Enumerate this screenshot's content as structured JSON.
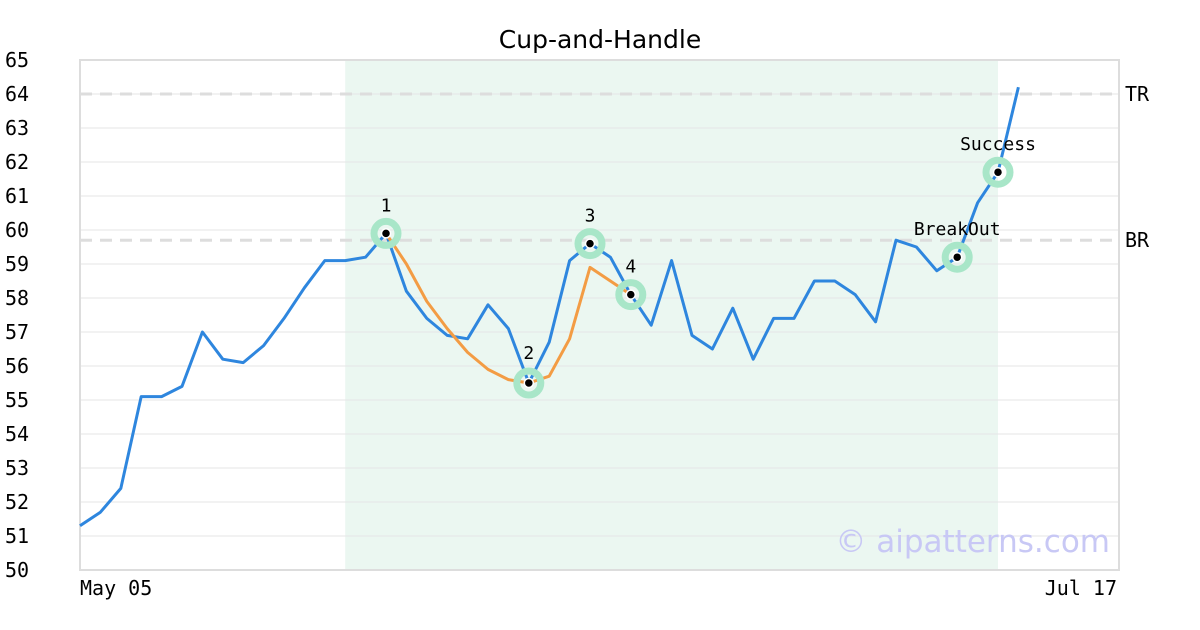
{
  "chart_data": {
    "type": "line",
    "title": "Cup-and-Handle",
    "xlabel": "",
    "ylabel": "",
    "ylim": [
      50,
      65
    ],
    "yticks": [
      50,
      51,
      52,
      53,
      54,
      55,
      56,
      57,
      58,
      59,
      60,
      61,
      62,
      63,
      64,
      65
    ],
    "x_tick_labels": [
      "May 05",
      "Jul 17"
    ],
    "grid": true,
    "colors": {
      "price": "#2e86de",
      "pattern": "#f39c44",
      "highlight": "#ebf7f1",
      "marker_halo": "#a8e6c8",
      "reference_line": "#dddddd",
      "watermark": "#c8c8f5"
    },
    "series": [
      {
        "values": [
          51.3,
          51.7,
          52.4,
          55.1,
          55.1,
          55.4,
          57.0,
          56.2,
          56.1,
          56.6,
          57.4,
          58.3,
          59.1,
          59.1,
          59.2,
          59.9,
          58.2,
          57.4,
          56.9,
          56.8,
          57.8,
          57.1,
          55.5,
          56.7,
          59.1,
          59.6,
          59.2,
          58.1,
          57.2,
          59.1,
          56.9,
          56.5,
          57.7,
          56.2,
          57.4,
          57.4,
          58.5,
          58.5,
          58.1,
          57.3,
          59.7,
          59.5,
          58.8,
          59.2,
          60.8,
          61.7,
          64.2
        ]
      }
    ],
    "pattern_curve": {
      "x_index": [
        15,
        16,
        17,
        18,
        19,
        20,
        21,
        22,
        23,
        24,
        25,
        26,
        27
      ],
      "values": [
        59.9,
        59.0,
        57.9,
        57.1,
        56.4,
        55.9,
        55.6,
        55.5,
        55.7,
        56.8,
        58.9,
        58.5,
        58.1
      ]
    },
    "highlight_range_index": [
      13,
      45
    ],
    "reference_lines": [
      {
        "label": "TR",
        "value": 64.0
      },
      {
        "label": "BR",
        "value": 59.7
      }
    ],
    "points": [
      {
        "label": "1",
        "x_index": 15,
        "value": 59.9
      },
      {
        "label": "2",
        "x_index": 22,
        "value": 55.5
      },
      {
        "label": "3",
        "x_index": 25,
        "value": 59.6
      },
      {
        "label": "4",
        "x_index": 27,
        "value": 58.1
      },
      {
        "label": "BreakOut",
        "x_index": 43,
        "value": 59.2
      },
      {
        "label": "Success",
        "x_index": 45,
        "value": 61.7
      }
    ],
    "watermark": "© aipatterns.com"
  }
}
